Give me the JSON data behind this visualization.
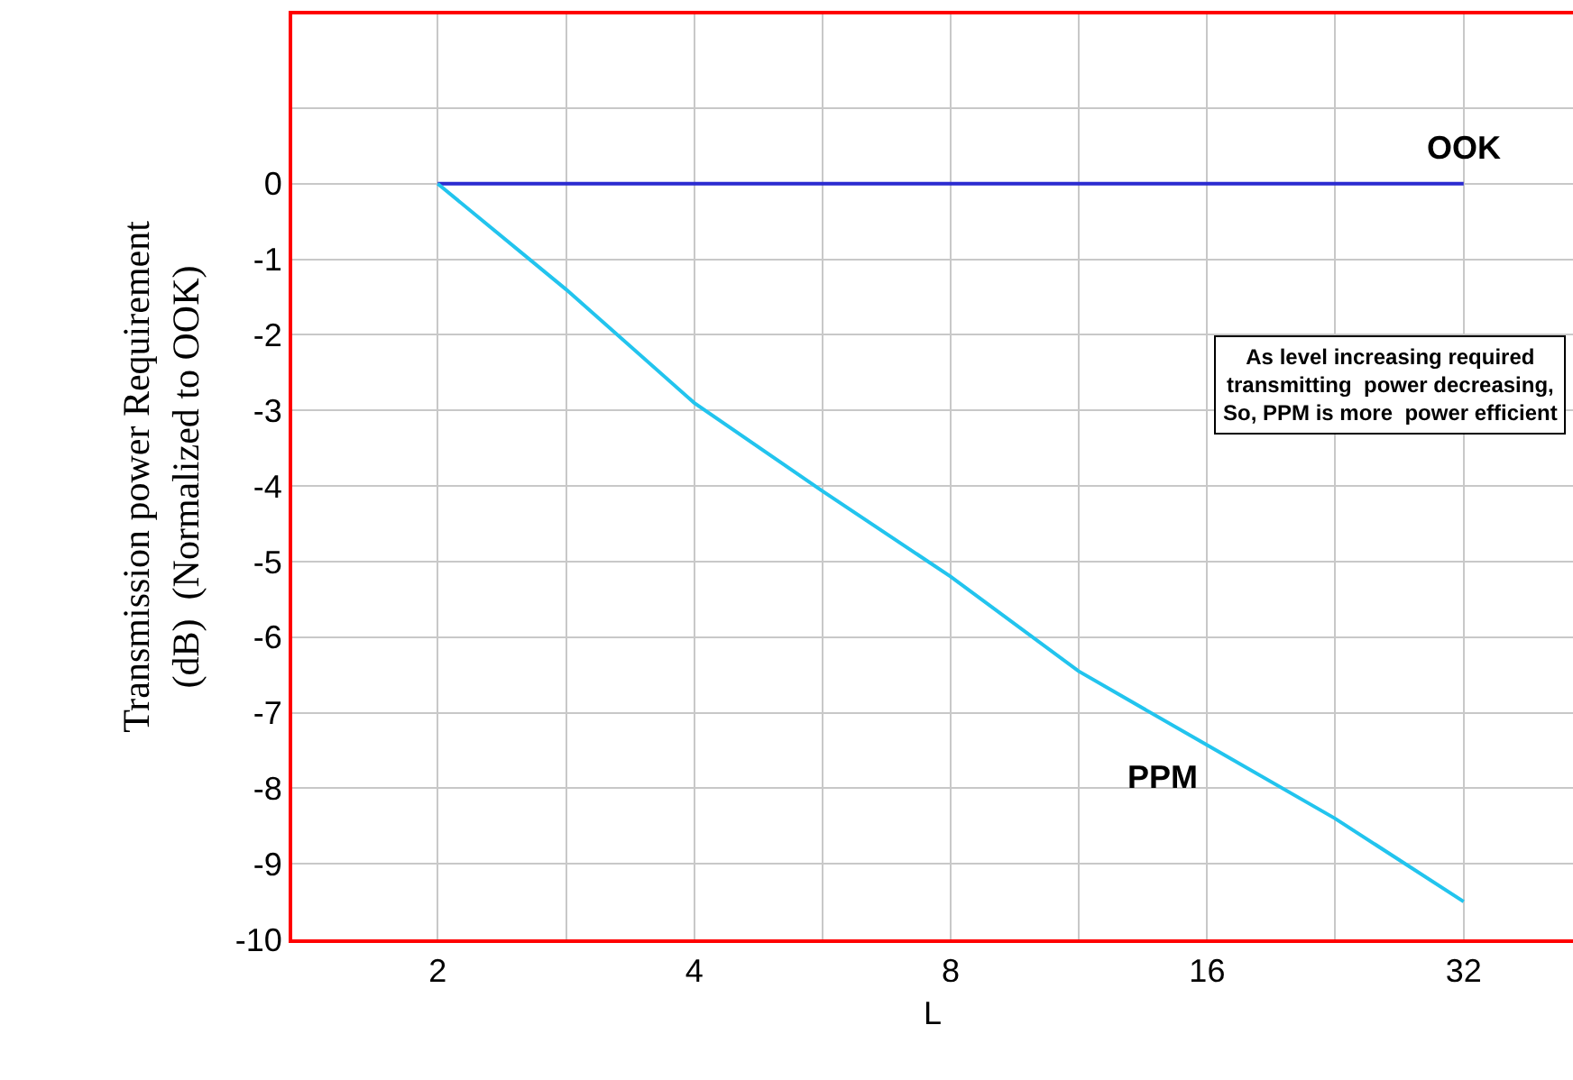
{
  "chart_data": {
    "type": "line",
    "xlabel": "L",
    "ylabel": "Transmission power Requirement\n(dB)  (Normalized to OOK)",
    "log": "x",
    "xlim": [
      1.35,
      43
    ],
    "xticks": [
      2,
      {
        "value": 2.83,
        "label": null
      },
      4,
      {
        "value": 5.66,
        "label": null
      },
      8,
      {
        "value": 11.3,
        "label": null
      },
      16,
      {
        "value": 22.6,
        "label": null
      },
      32
    ],
    "ylim": [
      -10,
      2.24
    ],
    "yticks": [
      {
        "value": 1,
        "label": null
      },
      0,
      -1,
      -2,
      -3,
      -4,
      -5,
      -6,
      -7,
      -8,
      -9,
      -10
    ],
    "grid": true,
    "legend": false,
    "marker": "none",
    "line_style": "solid",
    "series": [
      {
        "name": "OOK",
        "color": "#2b2bd0",
        "x": [
          2,
          32
        ],
        "values": [
          0,
          0
        ]
      },
      {
        "name": "PPM",
        "color": "#22c4ee",
        "x": [
          2,
          2.83,
          4,
          5.66,
          8,
          11.3,
          16,
          22.6,
          32
        ],
        "values": [
          0,
          -1.4,
          -2.9,
          -4.07,
          -5.2,
          -6.45,
          -7.43,
          -8.4,
          -9.5
        ]
      }
    ],
    "annotations": [
      "As level increasing required\ntransmitting  power decreasing,\nSo, PPM is more  power efficient"
    ]
  }
}
